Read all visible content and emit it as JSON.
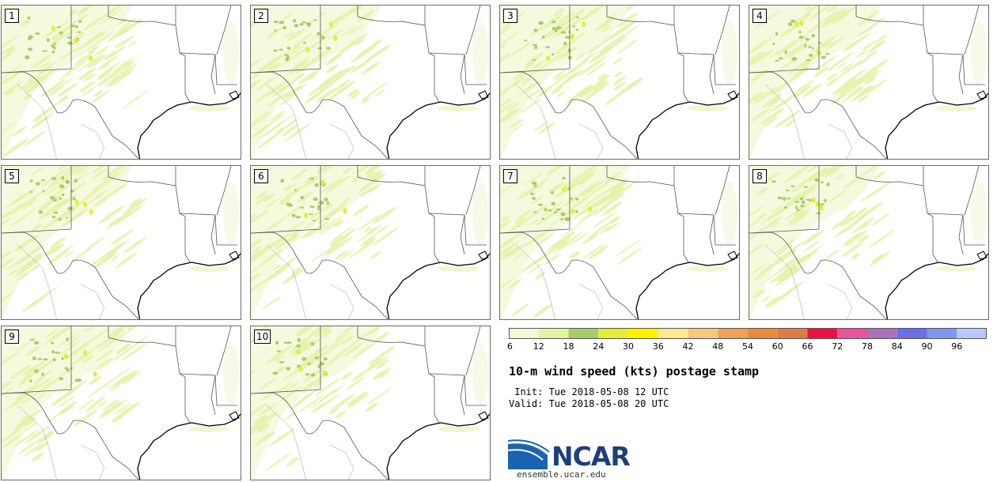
{
  "panels": [
    {
      "label": "1"
    },
    {
      "label": "2"
    },
    {
      "label": "3"
    },
    {
      "label": "4"
    },
    {
      "label": "5"
    },
    {
      "label": "6"
    },
    {
      "label": "7"
    },
    {
      "label": "8"
    },
    {
      "label": "9"
    },
    {
      "label": "10"
    }
  ],
  "colorbar": {
    "ticks": [
      "6",
      "12",
      "18",
      "24",
      "30",
      "36",
      "42",
      "48",
      "54",
      "60",
      "66",
      "72",
      "78",
      "84",
      "90",
      "96"
    ],
    "colors": [
      "#f4f8d8",
      "#e4f2a8",
      "#a9cc6a",
      "#e3ee3a",
      "#fff000",
      "#ffe98c",
      "#f5c97a",
      "#eda25a",
      "#e88a3c",
      "#e07a45",
      "#ee1045",
      "#e8559a",
      "#a873b8",
      "#6a6ee8",
      "#7e97f0",
      "#b8c8f8"
    ]
  },
  "title": "10-m wind speed (kts) postage stamp",
  "init_line": " Init: Tue 2018-05-08 12 UTC",
  "valid_line": "Valid: Tue 2018-05-08 20 UTC",
  "logo_text": "NCAR",
  "url": "ensemble.ucar.edu"
}
